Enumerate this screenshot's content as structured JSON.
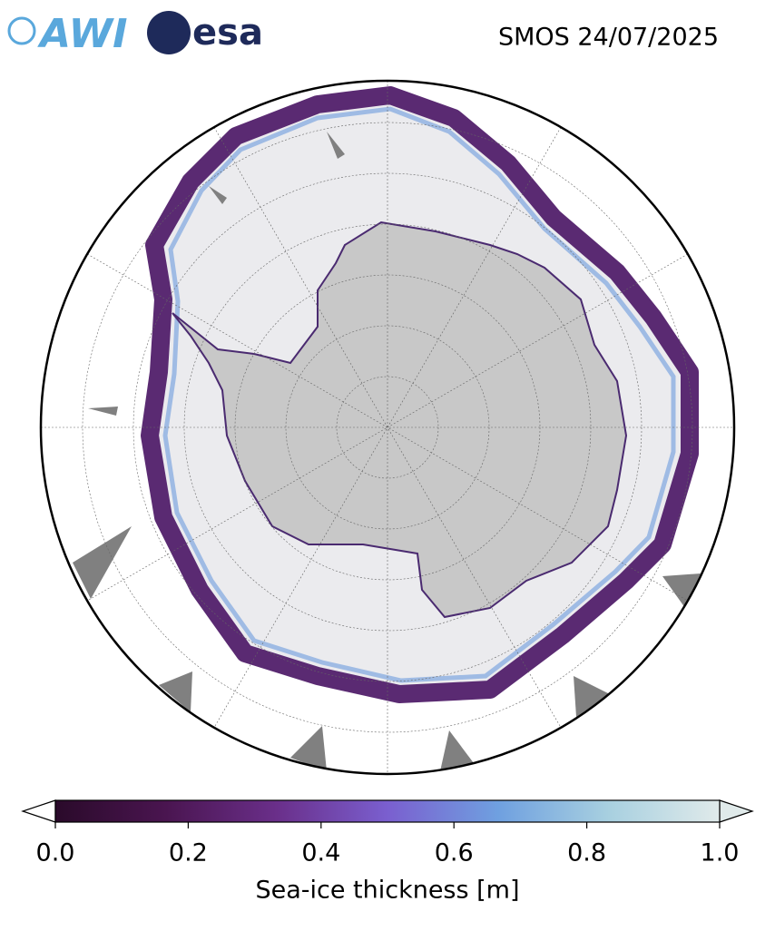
{
  "header": {
    "logos": [
      "AWI",
      "esa"
    ],
    "title": "SMOS 24/07/2025"
  },
  "colorbar": {
    "label": "Sea-ice thickness [m]",
    "lim": [
      0,
      1
    ],
    "ticks": [
      {
        "value": 0,
        "label": "0.0"
      },
      {
        "value": 0.2,
        "label": "0.2"
      },
      {
        "value": 0.4,
        "label": "0.4"
      },
      {
        "value": 0.6,
        "label": "0.6"
      },
      {
        "value": 0.8,
        "label": "0.8"
      },
      {
        "value": 1,
        "label": "1.0"
      }
    ],
    "colormap": [
      "#2a0a2a",
      "#4a1550",
      "#6a2f8a",
      "#7a5fcf",
      "#6fa0e0",
      "#a8d0e0",
      "#e0eaea"
    ]
  }
}
